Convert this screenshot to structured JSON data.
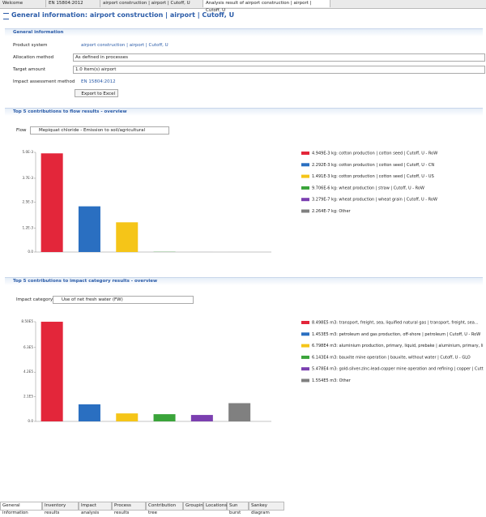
{
  "tabs": [
    "Welcome",
    "EN 15804:2012",
    "airport construction | airport | Cutoff, U",
    "Analysis result of airport construction | airport | Cutoff, U"
  ],
  "editor_title": "General information: airport construction | airport | Cutoff, U",
  "general": {
    "heading": "General information",
    "fields": [
      {
        "label": "Product system",
        "value": "airport construction | airport | Cutoff, U"
      },
      {
        "label": "Allocation method",
        "value": "As defined in processes"
      },
      {
        "label": "Target amount",
        "value": "1.0 Item(s) airport"
      },
      {
        "label": "Impact assessment method",
        "value": "EN 15804:2012"
      }
    ],
    "export_button": "Export to Excel"
  },
  "flow_section": {
    "heading": "Top 5 contributions to flow results - overview",
    "selector_label": "Flow",
    "selector_value": "Mepiquat chloride - Emission to soil/agricultural",
    "chart": {
      "type": "bar",
      "values": [
        0.004949,
        0.002292,
        0.001491,
        9.706e-06,
        3.279e-07,
        2.264e-07
      ],
      "colors": [
        "#e3263a",
        "#2a6fc1",
        "#f5c518",
        "#3aa43a",
        "#7b3fb0",
        "#808080"
      ],
      "legend": [
        "4.949E-3 kg: cotton production | cotton seed | Cutoff, U - RoW",
        "2.292E-3 kg: cotton production | cotton seed | Cutoff, U - CN",
        "1.491E-3 kg: cotton production | cotton seed | Cutoff, U - US",
        "9.706E-6 kg: wheat production | straw | Cutoff, U - RoW",
        "3.279E-7 kg: wheat production | wheat grain | Cutoff, U - RoW",
        "2.264E-7 kg: Other"
      ],
      "ylim": [
        0,
        0.005
      ],
      "yticks": [
        {
          "value": 0,
          "label": "0.0"
        },
        {
          "value": 0.0012,
          "label": "1.2E-3"
        },
        {
          "value": 0.0025,
          "label": "2.5E-3"
        },
        {
          "value": 0.0037,
          "label": "3.7E-3"
        },
        {
          "value": 0.005,
          "label": "5.0E-3"
        }
      ]
    }
  },
  "impact_section": {
    "heading": "Top 5 contributions to impact category results - overview",
    "selector_label": "Impact category",
    "selector_value": "Use of net fresh water (FW)",
    "chart": {
      "type": "bar",
      "values": [
        849800,
        145300,
        67980,
        61430,
        54780,
        155400
      ],
      "colors": [
        "#e3263a",
        "#2a6fc1",
        "#f5c518",
        "#3aa43a",
        "#7b3fb0",
        "#808080"
      ],
      "legend": [
        "8.498E5 m3: transport, freight, sea, liquified natural gas | transport, freight, sea...",
        "1.453E5 m3: petroleum and gas production, off-shore | petroleum | Cutoff, U - RoW",
        "6.798E4 m3: aluminium production, primary, liquid, prebake | aluminium, primary, li",
        "6.143E4 m3: bauxite mine operation | bauxite, without water | Cutoff, U - GLO",
        "5.478E4 m3: gold-silver-zinc-lead-copper mine operation and refining | copper | Cutt",
        "1.554E5 m3: Other"
      ],
      "ylim": [
        0,
        850000
      ],
      "yticks": [
        {
          "value": 0,
          "label": "0.0"
        },
        {
          "value": 210000,
          "label": "2.1E5"
        },
        {
          "value": 420000,
          "label": "4.2E5"
        },
        {
          "value": 630000,
          "label": "6.3E5"
        },
        {
          "value": 850000,
          "label": "8.50E5"
        }
      ]
    }
  },
  "bottom_tabs": [
    "General information",
    "Inventory results",
    "Impact analysis",
    "Process results",
    "Contribution tree",
    "Grouping",
    "Locations",
    "Sun burst",
    "Sankey diagram"
  ]
}
